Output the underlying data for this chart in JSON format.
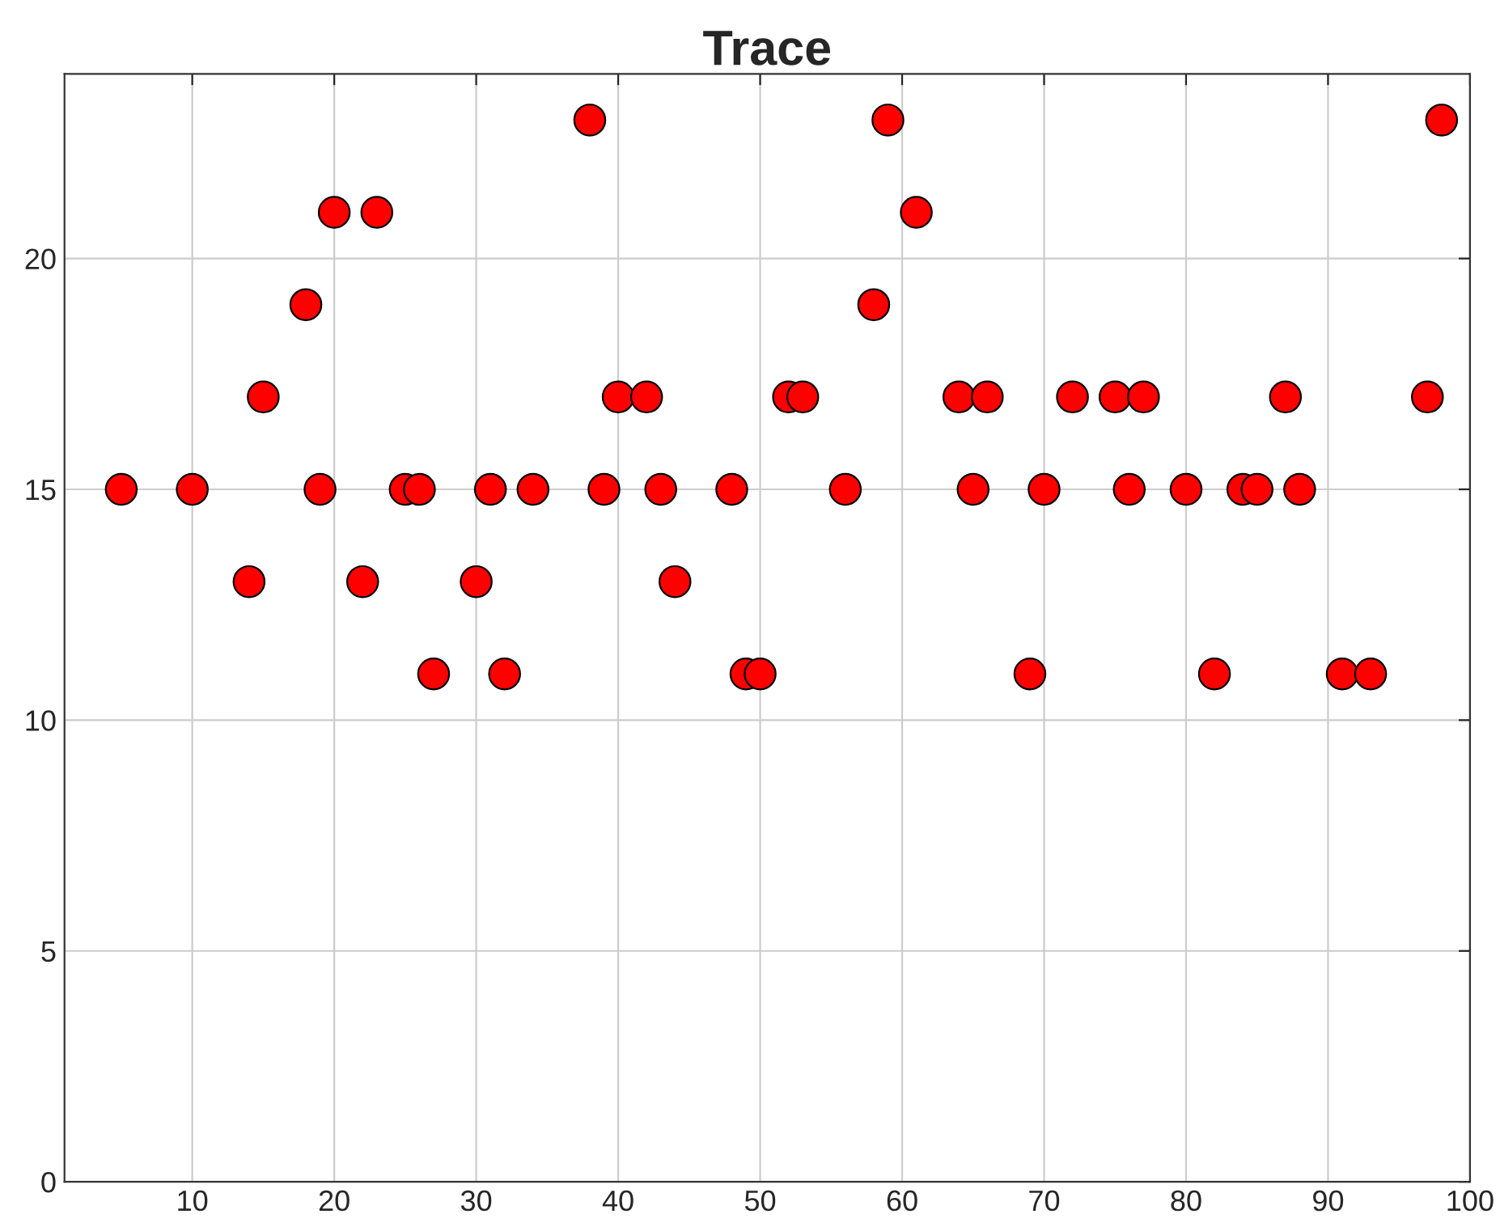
{
  "chart_data": {
    "type": "scatter",
    "title": "Trace",
    "x": [
      5,
      10,
      14,
      15,
      18,
      19,
      20,
      22,
      23,
      25,
      26,
      27,
      30,
      31,
      32,
      34,
      38,
      39,
      40,
      42,
      43,
      44,
      48,
      49,
      50,
      52,
      53,
      56,
      58,
      59,
      61,
      64,
      65,
      66,
      69,
      70,
      72,
      75,
      76,
      77,
      80,
      82,
      84,
      85,
      87,
      88,
      91,
      93,
      97,
      98
    ],
    "series": [
      {
        "color": "#ff0000",
        "values": [
          15,
          15,
          13,
          17,
          19,
          15,
          21,
          13,
          21,
          15,
          15,
          11,
          13,
          15,
          11,
          15,
          23,
          15,
          17,
          17,
          15,
          13,
          15,
          11,
          11,
          17,
          17,
          15,
          19,
          23,
          21,
          17,
          15,
          17,
          11,
          15,
          17,
          17,
          15,
          17,
          15,
          11,
          15,
          15,
          17,
          15,
          11,
          11,
          17,
          23
        ]
      }
    ],
    "xlim": [
      1,
      100
    ],
    "ylim": [
      0,
      24
    ],
    "xticks": [
      10,
      20,
      30,
      40,
      50,
      60,
      70,
      80,
      90,
      100
    ],
    "yticks": [
      0,
      5,
      10,
      15,
      20
    ],
    "grid": true,
    "marker": "circle"
  }
}
